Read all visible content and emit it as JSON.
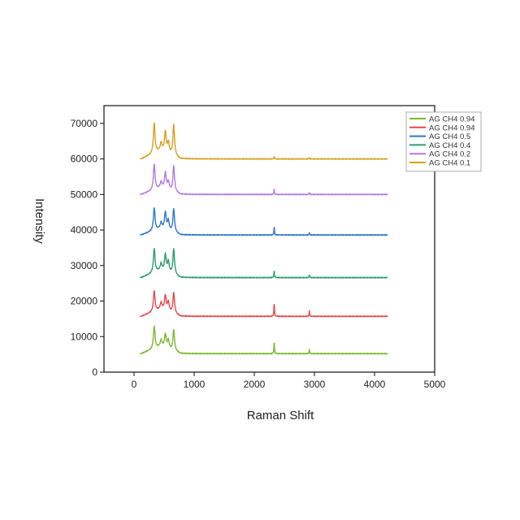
{
  "chart_data": {
    "type": "line",
    "title": "",
    "xlabel": "Raman Shift",
    "ylabel": "Intensity",
    "xlim": [
      -500,
      5000
    ],
    "ylim": [
      0,
      75000
    ],
    "x_ticks": [
      0,
      1000,
      2000,
      3000,
      4000,
      5000
    ],
    "y_ticks": [
      0,
      10000,
      20000,
      30000,
      40000,
      50000,
      60000,
      70000
    ],
    "x_tick_labels": [
      "0",
      "1000",
      "2000",
      "3000",
      "4000",
      "5000"
    ],
    "y_tick_labels": [
      "0",
      "10000",
      "20000",
      "30000",
      "40000",
      "50000",
      "60000",
      "70000"
    ],
    "grid": false,
    "legend_position": "top-right",
    "x_range": [
      100,
      4220
    ],
    "series": [
      {
        "name": "AG CH4 0.94",
        "color": "#7cb82f",
        "baseline": 5200,
        "peaks": [
          {
            "x": 335,
            "y": 12800
          },
          {
            "x": 450,
            "y": 9000
          },
          {
            "x": 520,
            "y": 10600
          },
          {
            "x": 570,
            "y": 8900
          },
          {
            "x": 660,
            "y": 11800
          },
          {
            "x": 2330,
            "y": 8700
          },
          {
            "x": 2915,
            "y": 6400
          }
        ]
      },
      {
        "name": "AG CH4 0.94",
        "color": "#e8464b",
        "baseline": 15700,
        "peaks": [
          {
            "x": 335,
            "y": 22800
          },
          {
            "x": 450,
            "y": 19500
          },
          {
            "x": 520,
            "y": 21500
          },
          {
            "x": 570,
            "y": 19600
          },
          {
            "x": 660,
            "y": 22300
          },
          {
            "x": 2330,
            "y": 19600
          },
          {
            "x": 2915,
            "y": 17300
          }
        ]
      },
      {
        "name": "AG CH4 0.5",
        "color": "#2f76d0",
        "baseline": 38600,
        "peaks": [
          {
            "x": 335,
            "y": 46200
          },
          {
            "x": 450,
            "y": 42000
          },
          {
            "x": 520,
            "y": 44900
          },
          {
            "x": 570,
            "y": 42500
          },
          {
            "x": 660,
            "y": 45900
          },
          {
            "x": 2330,
            "y": 41000
          },
          {
            "x": 2915,
            "y": 39300
          }
        ]
      },
      {
        "name": "AG CH4 0.4",
        "color": "#2a9e6c",
        "baseline": 26600,
        "peaks": [
          {
            "x": 335,
            "y": 34800
          },
          {
            "x": 450,
            "y": 30500
          },
          {
            "x": 520,
            "y": 33000
          },
          {
            "x": 570,
            "y": 31000
          },
          {
            "x": 660,
            "y": 34600
          },
          {
            "x": 2330,
            "y": 28600
          },
          {
            "x": 2915,
            "y": 27400
          }
        ]
      },
      {
        "name": "AG CH4 0.2",
        "color": "#b27ae3",
        "baseline": 50000,
        "peaks": [
          {
            "x": 335,
            "y": 58500
          },
          {
            "x": 450,
            "y": 53500
          },
          {
            "x": 520,
            "y": 56000
          },
          {
            "x": 570,
            "y": 53500
          },
          {
            "x": 660,
            "y": 58000
          },
          {
            "x": 2330,
            "y": 51600
          },
          {
            "x": 2915,
            "y": 50600
          }
        ]
      },
      {
        "name": "AG CH4 0.1",
        "color": "#d6a01e",
        "baseline": 60000,
        "peaks": [
          {
            "x": 335,
            "y": 70000
          },
          {
            "x": 450,
            "y": 64500
          },
          {
            "x": 520,
            "y": 67500
          },
          {
            "x": 570,
            "y": 64500
          },
          {
            "x": 660,
            "y": 69500
          },
          {
            "x": 2330,
            "y": 60700
          },
          {
            "x": 2915,
            "y": 60400
          }
        ]
      }
    ]
  }
}
